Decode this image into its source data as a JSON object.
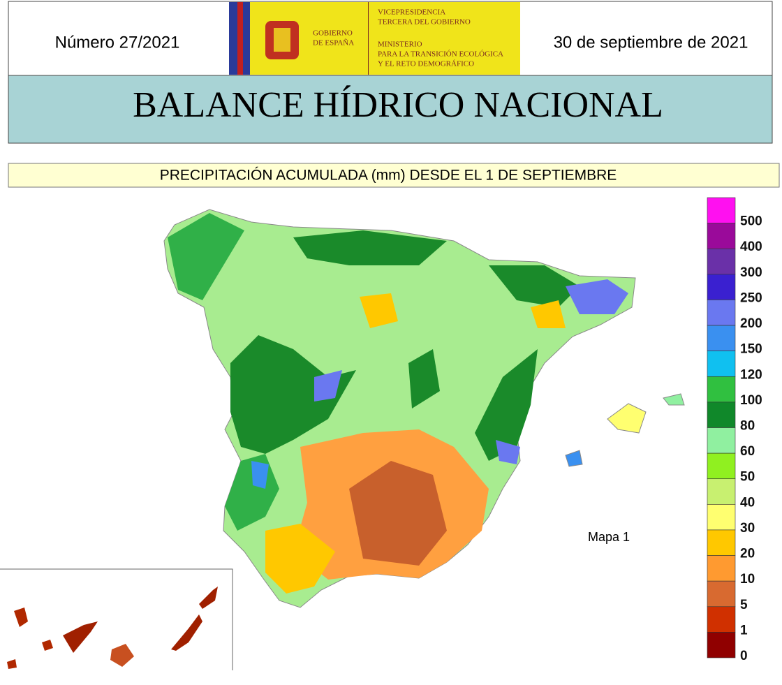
{
  "header": {
    "issue": "Número 27/2021",
    "date": "30 de septiembre de 2021",
    "logo": {
      "gobierno": [
        "GOBIERNO",
        "DE ESPAÑA"
      ],
      "vicepresidencia": [
        "VICEPRESIDENCIA",
        "TERCERA DEL GOBIERNO"
      ],
      "ministerio": [
        "MINISTERIO",
        "PARA LA TRANSICIÓN ECOLÓGICA",
        "Y EL RETO DEMOGRÁFICO"
      ]
    }
  },
  "title": "BALANCE HÍDRICO NACIONAL",
  "subtitle": "PRECIPITACIÓN ACUMULADA (mm) DESDE EL 1 DE SEPTIEMBRE",
  "map_label": "Mapa 1",
  "legend": [
    {
      "label": 500,
      "color": "#ff10f0"
    },
    {
      "label": 400,
      "color": "#9a0a9a"
    },
    {
      "label": 300,
      "color": "#6a30a8"
    },
    {
      "label": 250,
      "color": "#3a20d0"
    },
    {
      "label": 200,
      "color": "#6a78f0"
    },
    {
      "label": 150,
      "color": "#3a90f0"
    },
    {
      "label": 120,
      "color": "#10c0f0"
    },
    {
      "label": 100,
      "color": "#30c040"
    },
    {
      "label": 80,
      "color": "#10882a"
    },
    {
      "label": 60,
      "color": "#90f0a0"
    },
    {
      "label": 50,
      "color": "#90f020"
    },
    {
      "label": 40,
      "color": "#c8f070"
    },
    {
      "label": 30,
      "color": "#ffff70"
    },
    {
      "label": 20,
      "color": "#ffc800"
    },
    {
      "label": 10,
      "color": "#ff9a30"
    },
    {
      "label": 5,
      "color": "#d86a30"
    },
    {
      "label": 1,
      "color": "#d03000"
    },
    {
      "label": 0,
      "color": "#900000"
    }
  ]
}
